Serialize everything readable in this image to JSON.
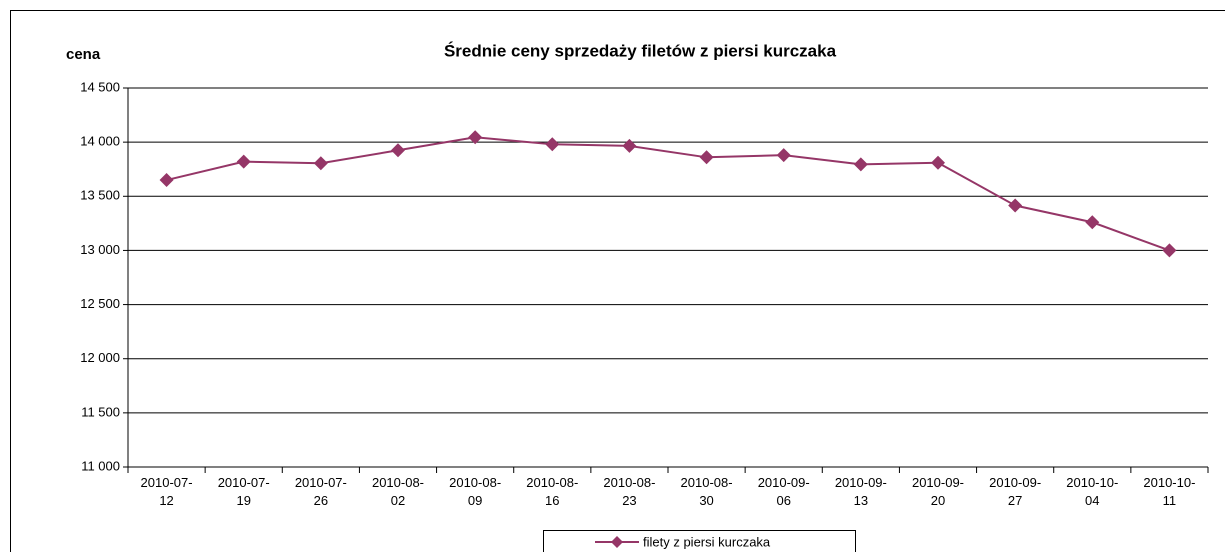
{
  "chart_data": {
    "type": "line",
    "title": "Średnie ceny sprzedaży filetów z piersi kurczaka",
    "y_label": "cena",
    "categories": [
      "2010-07-12",
      "2010-07-19",
      "2010-07-26",
      "2010-08-02",
      "2010-08-09",
      "2010-08-16",
      "2010-08-23",
      "2010-08-30",
      "2010-09-06",
      "2010-09-13",
      "2010-09-20",
      "2010-09-27",
      "2010-10-04",
      "2010-10-11"
    ],
    "series": [
      {
        "name": "filety z piersi kurczaka",
        "color": "#953667",
        "values": [
          13650,
          13820,
          13805,
          13925,
          14045,
          13980,
          13965,
          13860,
          13880,
          13795,
          13810,
          13415,
          13260,
          13000
        ]
      }
    ],
    "ylim": [
      11000,
      14500
    ],
    "yticks": [
      {
        "value": 11000,
        "label": "11 000"
      },
      {
        "value": 11500,
        "label": "11 500"
      },
      {
        "value": 12000,
        "label": "12 000"
      },
      {
        "value": 12500,
        "label": "12 500"
      },
      {
        "value": 13000,
        "label": "13 000"
      },
      {
        "value": 13500,
        "label": "13 500"
      },
      {
        "value": 14000,
        "label": "14 000"
      },
      {
        "value": 14500,
        "label": "14 500"
      }
    ],
    "grid": true,
    "marker": "diamond",
    "legend": "bottom"
  }
}
